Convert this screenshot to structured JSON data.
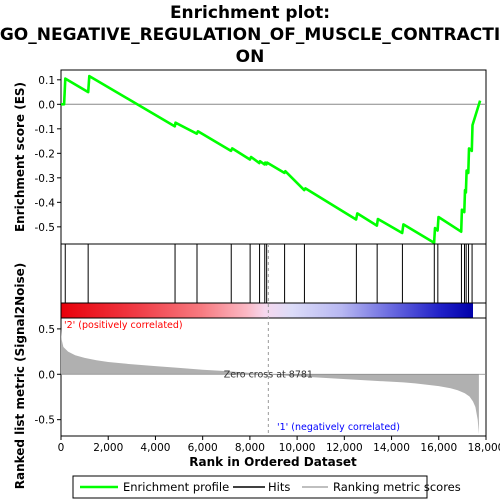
{
  "title_line1": "Enrichment plot:",
  "title_line2": "GO_NEGATIVE_REGULATION_OF_MUSCLE_CONTRACTI",
  "title_line3": "ON",
  "colors": {
    "enrichment_line": "#00ff00",
    "hits": "#000000",
    "zero_line": "#888888",
    "metric_fill": "#b0b0b0",
    "pos_label": "#ff0000",
    "neg_label": "#0000ff",
    "zero_cross_dash": "#999999"
  },
  "chart_data": [
    {
      "id": "enrichment",
      "type": "line",
      "ylabel": "Enrichment score (ES)",
      "xlim": [
        0,
        18000
      ],
      "ylim": [
        -0.57,
        0.14
      ],
      "yticks": [
        0.1,
        0.0,
        -0.1,
        -0.2,
        -0.3,
        -0.4,
        -0.5
      ],
      "ytick_labels": [
        "0.1",
        "0.0",
        "-0.1",
        "-0.2",
        "-0.3",
        "-0.4",
        "-0.5"
      ],
      "grid": false,
      "x": [
        0,
        130,
        180,
        1150,
        1200,
        4820,
        4850,
        5750,
        5800,
        7200,
        7250,
        8000,
        8050,
        8400,
        8430,
        8620,
        8650,
        8700,
        8730,
        9460,
        9500,
        10300,
        10350,
        12500,
        12550,
        13380,
        13420,
        14450,
        14500,
        15800,
        15840,
        15950,
        15990,
        16950,
        16980,
        17080,
        17110,
        17150,
        17180,
        17250,
        17280,
        17400,
        17430,
        17750
      ],
      "y": [
        0.0,
        0.0,
        0.105,
        0.05,
        0.115,
        -0.09,
        -0.075,
        -0.12,
        -0.11,
        -0.19,
        -0.18,
        -0.225,
        -0.215,
        -0.24,
        -0.232,
        -0.245,
        -0.238,
        -0.245,
        -0.238,
        -0.28,
        -0.273,
        -0.35,
        -0.343,
        -0.47,
        -0.445,
        -0.495,
        -0.468,
        -0.525,
        -0.49,
        -0.565,
        -0.505,
        -0.515,
        -0.46,
        -0.52,
        -0.43,
        -0.44,
        -0.35,
        -0.36,
        -0.27,
        -0.28,
        -0.18,
        -0.19,
        -0.085,
        0.015
      ]
    },
    {
      "id": "hits",
      "type": "scatter",
      "x": [
        180,
        1150,
        4830,
        5760,
        7210,
        8010,
        8410,
        8630,
        8710,
        9470,
        10310,
        12510,
        13390,
        14460,
        15810,
        15960,
        16960,
        17090,
        17160,
        17260,
        17410
      ]
    },
    {
      "id": "metric",
      "type": "area",
      "ylabel": "Ranked list metric (Signal2Noise)",
      "xlabel": "Rank in Ordered Dataset",
      "xlim": [
        0,
        18000
      ],
      "ylim": [
        -0.68,
        0.62
      ],
      "xticks": [
        0,
        2000,
        4000,
        6000,
        8000,
        10000,
        12000,
        14000,
        16000,
        18000
      ],
      "xtick_labels": [
        "0",
        "2,000",
        "4,000",
        "6,000",
        "8,000",
        "10,000",
        "12,000",
        "14,000",
        "16,000",
        "18,000"
      ],
      "yticks": [
        0.5,
        0.0,
        -0.5
      ],
      "ytick_labels": [
        "0.5",
        "0.0",
        "-0.5"
      ],
      "x": [
        0,
        30,
        100,
        300,
        600,
        1000,
        1500,
        2000,
        3000,
        4000,
        5000,
        6000,
        7000,
        8000,
        8781,
        9500,
        10500,
        11500,
        12500,
        13500,
        14500,
        15000,
        15500,
        16000,
        16500,
        16800,
        17100,
        17300,
        17450,
        17550,
        17650,
        17700
      ],
      "y": [
        0.5,
        0.38,
        0.3,
        0.25,
        0.21,
        0.18,
        0.155,
        0.135,
        0.11,
        0.09,
        0.07,
        0.05,
        0.035,
        0.015,
        0.0,
        -0.015,
        -0.03,
        -0.045,
        -0.06,
        -0.075,
        -0.09,
        -0.1,
        -0.115,
        -0.13,
        -0.155,
        -0.175,
        -0.21,
        -0.245,
        -0.3,
        -0.36,
        -0.5,
        -0.66
      ]
    }
  ],
  "zero_cross": {
    "rank": 8781,
    "label": "Zero cross at 8781"
  },
  "pos_label": "'2' (positively correlated)",
  "neg_label": "'1' (negatively correlated)",
  "legend": [
    {
      "label": "Enrichment profile",
      "kind": "profile"
    },
    {
      "label": "Hits",
      "kind": "hits"
    },
    {
      "label": "Ranking metric scores",
      "kind": "metric"
    }
  ]
}
